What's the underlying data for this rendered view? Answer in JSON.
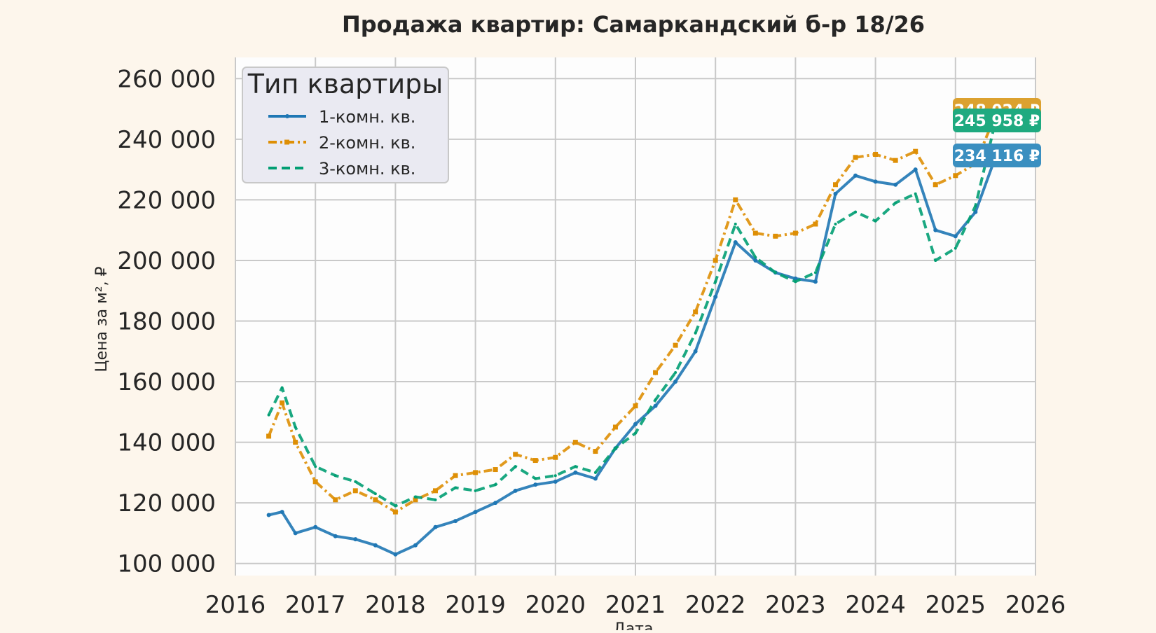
{
  "chart_data": {
    "type": "line",
    "title": "Продажа квартир: Самаркандский б-р 18/26",
    "xlabel": "Дата",
    "ylabel": "Цена за м², ₽",
    "xlim": [
      2016,
      2026
    ],
    "ylim": [
      96000,
      267000
    ],
    "x_ticks": [
      "2016",
      "2017",
      "2018",
      "2019",
      "2020",
      "2021",
      "2022",
      "2023",
      "2024",
      "2025",
      "2026"
    ],
    "y_ticks": [
      "100 000",
      "120 000",
      "140 000",
      "160 000",
      "180 000",
      "200 000",
      "220 000",
      "240 000",
      "260 000"
    ],
    "grid": true,
    "legend": {
      "title": "Тип квартиры",
      "placement": "top-left"
    },
    "series": [
      {
        "name": "1-комн. кв.",
        "color": "#1f77b4",
        "style": "solid",
        "end_label": "234 116 ₽",
        "points": [
          {
            "x": "2016-06",
            "y": 116000
          },
          {
            "x": "2016-08",
            "y": 117000
          },
          {
            "x": "2016-10",
            "y": 110000
          },
          {
            "x": "2017-01",
            "y": 112000
          },
          {
            "x": "2017-04",
            "y": 109000
          },
          {
            "x": "2017-07",
            "y": 108000
          },
          {
            "x": "2017-10",
            "y": 106000
          },
          {
            "x": "2018-01",
            "y": 103000
          },
          {
            "x": "2018-04",
            "y": 106000
          },
          {
            "x": "2018-07",
            "y": 112000
          },
          {
            "x": "2018-10",
            "y": 114000
          },
          {
            "x": "2019-01",
            "y": 117000
          },
          {
            "x": "2019-04",
            "y": 120000
          },
          {
            "x": "2019-07",
            "y": 124000
          },
          {
            "x": "2019-10",
            "y": 126000
          },
          {
            "x": "2020-01",
            "y": 127000
          },
          {
            "x": "2020-04",
            "y": 130000
          },
          {
            "x": "2020-07",
            "y": 128000
          },
          {
            "x": "2020-10",
            "y": 138000
          },
          {
            "x": "2021-01",
            "y": 146000
          },
          {
            "x": "2021-04",
            "y": 152000
          },
          {
            "x": "2021-07",
            "y": 160000
          },
          {
            "x": "2021-10",
            "y": 170000
          },
          {
            "x": "2022-01",
            "y": 188000
          },
          {
            "x": "2022-04",
            "y": 206000
          },
          {
            "x": "2022-07",
            "y": 200000
          },
          {
            "x": "2022-10",
            "y": 196000
          },
          {
            "x": "2023-01",
            "y": 194000
          },
          {
            "x": "2023-04",
            "y": 193000
          },
          {
            "x": "2023-07",
            "y": 222000
          },
          {
            "x": "2023-10",
            "y": 228000
          },
          {
            "x": "2024-01",
            "y": 226000
          },
          {
            "x": "2024-04",
            "y": 225000
          },
          {
            "x": "2024-07",
            "y": 230000
          },
          {
            "x": "2024-10",
            "y": 210000
          },
          {
            "x": "2025-01",
            "y": 208000
          },
          {
            "x": "2025-04",
            "y": 216000
          },
          {
            "x": "2025-07",
            "y": 234116
          }
        ]
      },
      {
        "name": "2-комн. кв.",
        "color": "#de8f05",
        "style": "dashdot",
        "end_label": "248 024 ₽",
        "points": [
          {
            "x": "2016-06",
            "y": 142000
          },
          {
            "x": "2016-08",
            "y": 153000
          },
          {
            "x": "2016-10",
            "y": 140000
          },
          {
            "x": "2017-01",
            "y": 127000
          },
          {
            "x": "2017-04",
            "y": 121000
          },
          {
            "x": "2017-07",
            "y": 124000
          },
          {
            "x": "2017-10",
            "y": 121000
          },
          {
            "x": "2018-01",
            "y": 117000
          },
          {
            "x": "2018-04",
            "y": 121000
          },
          {
            "x": "2018-07",
            "y": 124000
          },
          {
            "x": "2018-10",
            "y": 129000
          },
          {
            "x": "2019-01",
            "y": 130000
          },
          {
            "x": "2019-04",
            "y": 131000
          },
          {
            "x": "2019-07",
            "y": 136000
          },
          {
            "x": "2019-10",
            "y": 134000
          },
          {
            "x": "2020-01",
            "y": 135000
          },
          {
            "x": "2020-04",
            "y": 140000
          },
          {
            "x": "2020-07",
            "y": 137000
          },
          {
            "x": "2020-10",
            "y": 145000
          },
          {
            "x": "2021-01",
            "y": 152000
          },
          {
            "x": "2021-04",
            "y": 163000
          },
          {
            "x": "2021-07",
            "y": 172000
          },
          {
            "x": "2021-10",
            "y": 183000
          },
          {
            "x": "2022-01",
            "y": 200000
          },
          {
            "x": "2022-04",
            "y": 220000
          },
          {
            "x": "2022-07",
            "y": 209000
          },
          {
            "x": "2022-10",
            "y": 208000
          },
          {
            "x": "2023-01",
            "y": 209000
          },
          {
            "x": "2023-04",
            "y": 212000
          },
          {
            "x": "2023-07",
            "y": 225000
          },
          {
            "x": "2023-10",
            "y": 234000
          },
          {
            "x": "2024-01",
            "y": 235000
          },
          {
            "x": "2024-04",
            "y": 233000
          },
          {
            "x": "2024-07",
            "y": 236000
          },
          {
            "x": "2024-10",
            "y": 225000
          },
          {
            "x": "2025-01",
            "y": 228000
          },
          {
            "x": "2025-04",
            "y": 232000
          },
          {
            "x": "2025-07",
            "y": 248024
          }
        ]
      },
      {
        "name": "3-комн. кв.",
        "color": "#029e73",
        "style": "dashed",
        "end_label": "245 958 ₽",
        "points": [
          {
            "x": "2016-06",
            "y": 149000
          },
          {
            "x": "2016-08",
            "y": 158000
          },
          {
            "x": "2016-10",
            "y": 145000
          },
          {
            "x": "2017-01",
            "y": 132000
          },
          {
            "x": "2017-04",
            "y": 129000
          },
          {
            "x": "2017-07",
            "y": 127000
          },
          {
            "x": "2017-10",
            "y": 123000
          },
          {
            "x": "2018-01",
            "y": 119000
          },
          {
            "x": "2018-04",
            "y": 122000
          },
          {
            "x": "2018-07",
            "y": 121000
          },
          {
            "x": "2018-10",
            "y": 125000
          },
          {
            "x": "2019-01",
            "y": 124000
          },
          {
            "x": "2019-04",
            "y": 126000
          },
          {
            "x": "2019-07",
            "y": 132000
          },
          {
            "x": "2019-10",
            "y": 128000
          },
          {
            "x": "2020-01",
            "y": 129000
          },
          {
            "x": "2020-04",
            "y": 132000
          },
          {
            "x": "2020-07",
            "y": 130000
          },
          {
            "x": "2020-10",
            "y": 138000
          },
          {
            "x": "2021-01",
            "y": 143000
          },
          {
            "x": "2021-04",
            "y": 154000
          },
          {
            "x": "2021-07",
            "y": 163000
          },
          {
            "x": "2021-10",
            "y": 176000
          },
          {
            "x": "2022-01",
            "y": 193000
          },
          {
            "x": "2022-04",
            "y": 212000
          },
          {
            "x": "2022-07",
            "y": 201000
          },
          {
            "x": "2022-10",
            "y": 196000
          },
          {
            "x": "2023-01",
            "y": 193000
          },
          {
            "x": "2023-04",
            "y": 196000
          },
          {
            "x": "2023-07",
            "y": 212000
          },
          {
            "x": "2023-10",
            "y": 216000
          },
          {
            "x": "2024-01",
            "y": 213000
          },
          {
            "x": "2024-04",
            "y": 219000
          },
          {
            "x": "2024-07",
            "y": 222000
          },
          {
            "x": "2024-10",
            "y": 200000
          },
          {
            "x": "2025-01",
            "y": 204000
          },
          {
            "x": "2025-04",
            "y": 218000
          },
          {
            "x": "2025-07",
            "y": 245958
          }
        ]
      }
    ]
  }
}
